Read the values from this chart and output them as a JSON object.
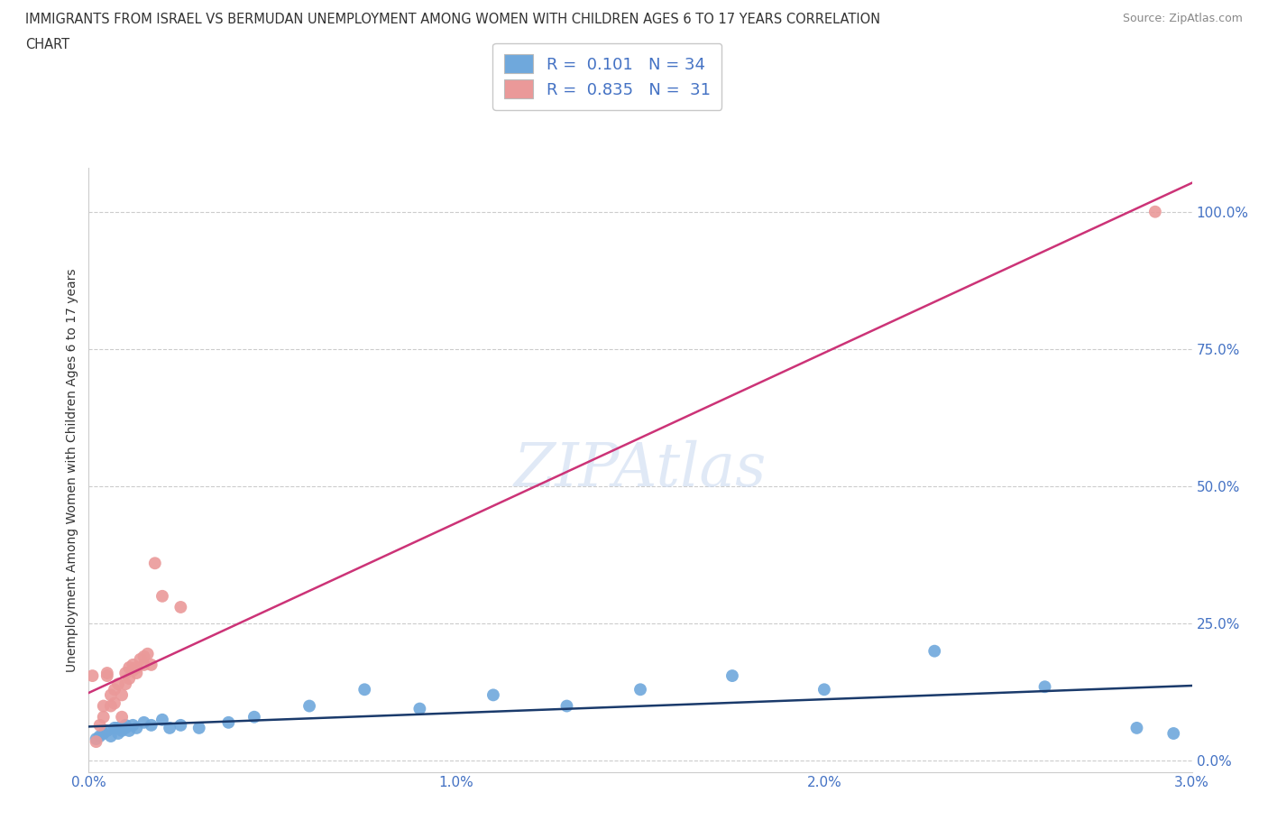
{
  "title_line1": "IMMIGRANTS FROM ISRAEL VS BERMUDAN UNEMPLOYMENT AMONG WOMEN WITH CHILDREN AGES 6 TO 17 YEARS CORRELATION",
  "title_line2": "CHART",
  "source": "Source: ZipAtlas.com",
  "ylabel": "Unemployment Among Women with Children Ages 6 to 17 years",
  "xlim": [
    0.0,
    0.03
  ],
  "ylim": [
    -0.02,
    1.08
  ],
  "yticks": [
    0.0,
    0.25,
    0.5,
    0.75,
    1.0
  ],
  "ytick_labels": [
    "0.0%",
    "25.0%",
    "50.0%",
    "75.0%",
    "100.0%"
  ],
  "xticks": [
    0.0,
    0.01,
    0.02,
    0.03
  ],
  "xtick_labels": [
    "0.0%",
    "1.0%",
    "2.0%",
    "3.0%"
  ],
  "blue_color": "#6fa8dc",
  "pink_color": "#ea9999",
  "blue_line_color": "#1a3a6b",
  "pink_line_color": "#cc3377",
  "blue_R": 0.101,
  "blue_N": 34,
  "pink_R": 0.835,
  "pink_N": 31,
  "watermark": "ZIPAtlas",
  "background_color": "#ffffff",
  "grid_color": "#cccccc",
  "blue_points_x": [
    0.0002,
    0.0003,
    0.0004,
    0.0005,
    0.0006,
    0.0007,
    0.0008,
    0.0008,
    0.0009,
    0.001,
    0.001,
    0.0011,
    0.0012,
    0.0013,
    0.0015,
    0.0017,
    0.002,
    0.0022,
    0.0025,
    0.003,
    0.0038,
    0.0045,
    0.006,
    0.0075,
    0.009,
    0.011,
    0.013,
    0.015,
    0.0175,
    0.02,
    0.023,
    0.026,
    0.0285,
    0.0295
  ],
  "blue_points_y": [
    0.04,
    0.045,
    0.05,
    0.055,
    0.045,
    0.06,
    0.05,
    0.06,
    0.055,
    0.065,
    0.06,
    0.055,
    0.065,
    0.06,
    0.07,
    0.065,
    0.075,
    0.06,
    0.065,
    0.06,
    0.07,
    0.08,
    0.1,
    0.13,
    0.095,
    0.12,
    0.1,
    0.13,
    0.155,
    0.13,
    0.2,
    0.135,
    0.06,
    0.05
  ],
  "pink_points_x": [
    0.0001,
    0.0002,
    0.0003,
    0.0004,
    0.0004,
    0.0005,
    0.0005,
    0.0006,
    0.0006,
    0.0007,
    0.0007,
    0.0008,
    0.0009,
    0.0009,
    0.001,
    0.001,
    0.0011,
    0.0011,
    0.0012,
    0.0012,
    0.0013,
    0.0013,
    0.0014,
    0.0015,
    0.0015,
    0.0016,
    0.0017,
    0.0018,
    0.002,
    0.0025,
    0.029
  ],
  "pink_points_y": [
    0.155,
    0.035,
    0.065,
    0.08,
    0.1,
    0.155,
    0.16,
    0.1,
    0.12,
    0.105,
    0.13,
    0.14,
    0.08,
    0.12,
    0.14,
    0.16,
    0.17,
    0.15,
    0.165,
    0.175,
    0.16,
    0.17,
    0.185,
    0.175,
    0.19,
    0.195,
    0.175,
    0.36,
    0.3,
    0.28,
    1.0
  ]
}
